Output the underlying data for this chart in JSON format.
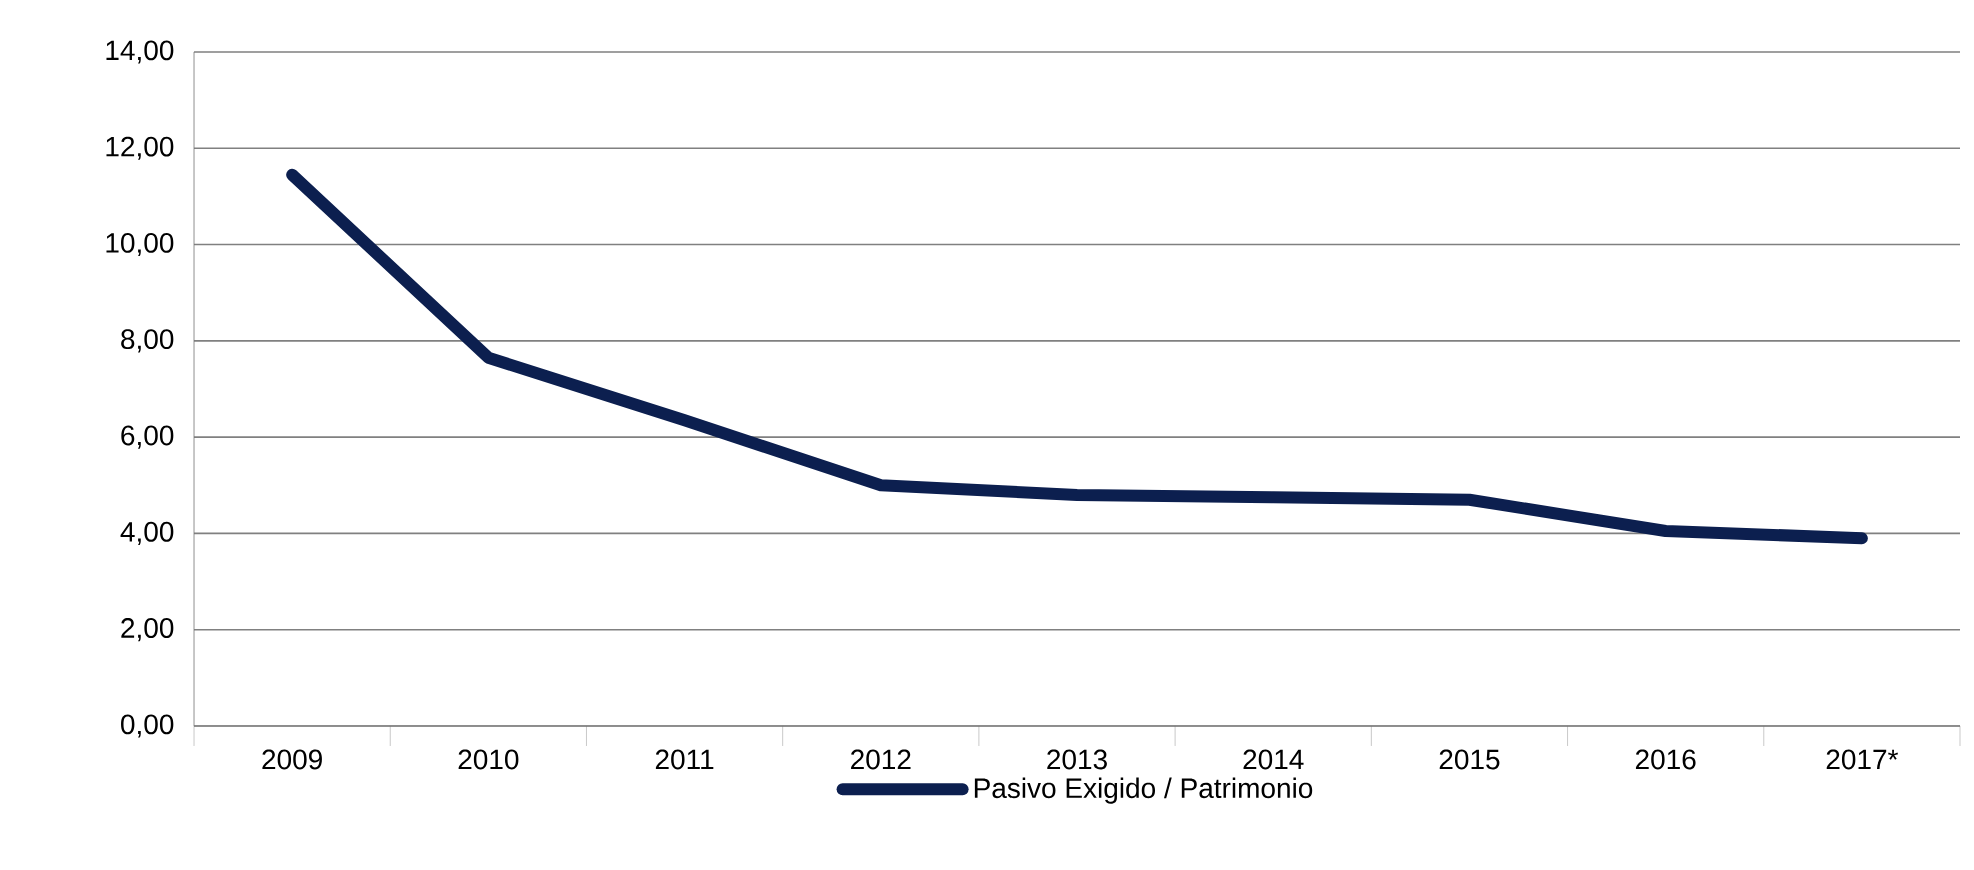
{
  "chart_data": {
    "type": "line",
    "categories": [
      "2009",
      "2010",
      "2011",
      "2012",
      "2013",
      "2014",
      "2015",
      "2016",
      "2017*"
    ],
    "series": [
      {
        "name": "Pasivo Exigido / Patrimonio",
        "color": "#0c1f4f",
        "values": [
          11.45,
          7.65,
          6.35,
          5.0,
          4.8,
          4.75,
          4.7,
          4.05,
          3.9
        ]
      }
    ],
    "ylim": [
      0,
      14
    ],
    "yticks": [
      {
        "value": 0,
        "label": "0,00"
      },
      {
        "value": 2,
        "label": "2,00"
      },
      {
        "value": 4,
        "label": "4,00"
      },
      {
        "value": 6,
        "label": "6,00"
      },
      {
        "value": 8,
        "label": "8,00"
      },
      {
        "value": 10,
        "label": "10,00"
      },
      {
        "value": 12,
        "label": "12,00"
      },
      {
        "value": 14,
        "label": "14,00"
      }
    ],
    "grid": "y",
    "legend": "bottom",
    "marker": "none",
    "line_style": "solid"
  }
}
